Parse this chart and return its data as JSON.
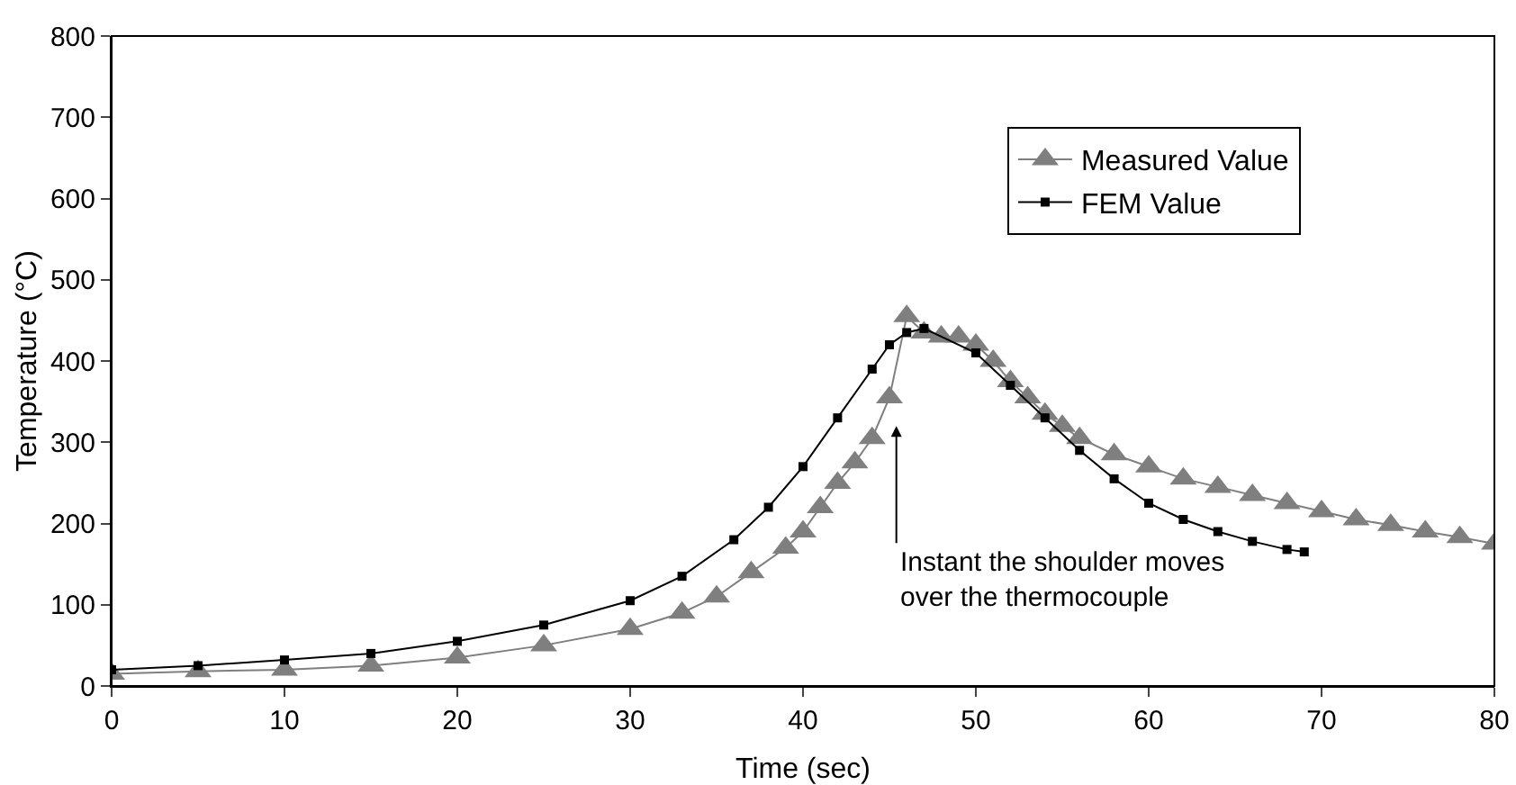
{
  "chart_data": {
    "type": "line",
    "xlabel": "Time (sec)",
    "ylabel": "Temperature (°C)",
    "xlim": [
      0,
      80
    ],
    "xticks": [
      0,
      10,
      20,
      30,
      40,
      50,
      60,
      70,
      80
    ],
    "ylim": [
      0,
      800
    ],
    "yticks": [
      0,
      100,
      200,
      300,
      400,
      500,
      600,
      700,
      800
    ],
    "grid": false,
    "legend": "top right",
    "series": [
      {
        "name": "Measured Value",
        "color": "#7f7f7f",
        "marker": "triangle",
        "x": [
          0,
          5,
          10,
          15,
          20,
          25,
          30,
          33,
          35,
          37,
          39,
          40,
          41,
          42,
          43,
          44,
          45,
          46,
          47,
          48,
          49,
          50,
          51,
          52,
          53,
          54,
          55,
          56,
          58,
          60,
          62,
          64,
          66,
          68,
          70,
          72,
          74,
          76,
          78,
          80
        ],
        "values": [
          15,
          18,
          20,
          25,
          35,
          50,
          70,
          90,
          110,
          140,
          170,
          190,
          220,
          250,
          275,
          305,
          355,
          455,
          435,
          430,
          430,
          420,
          400,
          375,
          355,
          335,
          320,
          305,
          285,
          270,
          255,
          245,
          235,
          225,
          215,
          205,
          198,
          190,
          183,
          175
        ]
      },
      {
        "name": "FEM Value",
        "color": "#000000",
        "marker": "square",
        "x": [
          0,
          5,
          10,
          15,
          20,
          25,
          30,
          33,
          36,
          38,
          40,
          42,
          44,
          45,
          46,
          47,
          50,
          52,
          54,
          56,
          58,
          60,
          62,
          64,
          66,
          68,
          69
        ],
        "values": [
          20,
          25,
          32,
          40,
          55,
          75,
          105,
          135,
          180,
          220,
          270,
          330,
          390,
          420,
          435,
          440,
          410,
          370,
          330,
          290,
          255,
          225,
          205,
          190,
          178,
          168,
          165
        ]
      }
    ],
    "annotations": [
      "Instant the shoulder moves\nover the thermocouple"
    ]
  }
}
